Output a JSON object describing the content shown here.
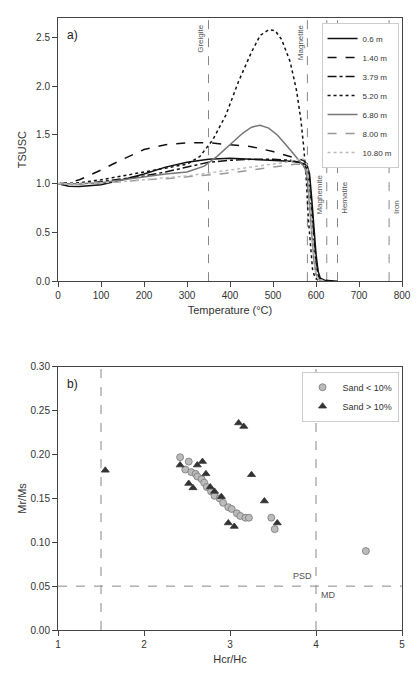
{
  "chart_data": [
    {
      "type": "line",
      "title": "a)",
      "x_label": "Temperature (°C)",
      "y_label": "TSUSC",
      "xlim": [
        0,
        800
      ],
      "ylim": [
        0,
        2.7
      ],
      "xticks": [
        0,
        100,
        200,
        300,
        400,
        500,
        600,
        700,
        800
      ],
      "yticks": [
        {
          "value": 0,
          "label": "0.0"
        },
        0.5,
        {
          "value": 1,
          "label": "1.0"
        },
        1.5,
        {
          "value": 2,
          "label": "2.0"
        },
        2.5
      ],
      "grid": false,
      "legend": "upper right",
      "v_lines": [
        {
          "x": 350,
          "label": "Greigite"
        },
        {
          "x": 580,
          "label": "Magnetite"
        },
        {
          "x": 625,
          "label": "Maghemite"
        },
        {
          "x": 650,
          "label": "Hematite"
        },
        {
          "x": 770,
          "label": "Iron"
        }
      ],
      "series": [
        {
          "name": "0.6 m",
          "color": "#111111",
          "line_style": "solid",
          "x": [
            0,
            25,
            50,
            100,
            150,
            200,
            250,
            300,
            350,
            400,
            450,
            500,
            540,
            560,
            570,
            575,
            580,
            585,
            590,
            595,
            600,
            605,
            610,
            620,
            650
          ],
          "values": [
            1.0,
            0.975,
            0.97,
            0.99,
            1.04,
            1.1,
            1.17,
            1.22,
            1.25,
            1.26,
            1.25,
            1.24,
            1.23,
            1.22,
            1.21,
            1.2,
            1.18,
            1.1,
            0.85,
            0.55,
            0.28,
            0.1,
            0.03,
            0.01,
            0.0
          ]
        },
        {
          "name": "1.40 m",
          "color": "#111111",
          "line_style": "dashed",
          "x": [
            0,
            25,
            50,
            100,
            150,
            200,
            250,
            300,
            350,
            400,
            450,
            500,
            540,
            560,
            570,
            575,
            580,
            585,
            590,
            595,
            600,
            605,
            610,
            620
          ],
          "values": [
            1.0,
            1.01,
            1.04,
            1.14,
            1.25,
            1.35,
            1.4,
            1.42,
            1.42,
            1.4,
            1.38,
            1.33,
            1.28,
            1.26,
            1.24,
            1.22,
            1.2,
            1.05,
            0.8,
            0.5,
            0.22,
            0.08,
            0.02,
            0.0
          ]
        },
        {
          "name": "3.79 m",
          "color": "#111111",
          "line_style": "dashdot",
          "x": [
            0,
            50,
            100,
            150,
            200,
            250,
            300,
            350,
            400,
            450,
            500,
            540,
            560,
            570,
            575,
            580,
            585,
            590,
            595,
            600,
            605,
            610,
            640
          ],
          "values": [
            1.0,
            1.0,
            1.02,
            1.05,
            1.08,
            1.12,
            1.17,
            1.22,
            1.24,
            1.25,
            1.25,
            1.24,
            1.22,
            1.2,
            1.18,
            1.15,
            0.95,
            0.68,
            0.4,
            0.18,
            0.06,
            0.01,
            0.0
          ]
        },
        {
          "name": "5.20 m",
          "color": "#111111",
          "line_style": "dotted",
          "x": [
            0,
            50,
            100,
            150,
            200,
            250,
            300,
            330,
            360,
            390,
            420,
            450,
            470,
            490,
            505,
            520,
            540,
            555,
            565,
            572,
            578,
            582,
            587,
            592,
            598,
            610
          ],
          "values": [
            1.0,
            1.01,
            1.04,
            1.08,
            1.12,
            1.16,
            1.2,
            1.28,
            1.45,
            1.7,
            2.05,
            2.35,
            2.52,
            2.58,
            2.57,
            2.48,
            2.25,
            1.95,
            1.65,
            1.35,
            1.0,
            0.65,
            0.35,
            0.12,
            0.03,
            0.0
          ]
        },
        {
          "name": "6.80 m",
          "color": "#777777",
          "line_style": "solid",
          "x": [
            0,
            50,
            100,
            150,
            200,
            250,
            300,
            340,
            370,
            400,
            430,
            450,
            470,
            490,
            510,
            530,
            550,
            560,
            568,
            575,
            580,
            585,
            590,
            595,
            600,
            605,
            620
          ],
          "values": [
            1.0,
            1.0,
            1.01,
            1.04,
            1.07,
            1.1,
            1.12,
            1.18,
            1.28,
            1.4,
            1.52,
            1.58,
            1.6,
            1.57,
            1.5,
            1.4,
            1.3,
            1.24,
            1.2,
            1.15,
            1.05,
            0.78,
            0.48,
            0.22,
            0.07,
            0.02,
            0.0
          ]
        },
        {
          "name": "8.00 m",
          "color": "#999999",
          "line_style": "dashed",
          "x": [
            0,
            50,
            100,
            150,
            200,
            250,
            300,
            350,
            400,
            450,
            500,
            530,
            550,
            560,
            568,
            575,
            580,
            585,
            590,
            595,
            600,
            605,
            620
          ],
          "values": [
            1.0,
            1.0,
            1.01,
            1.02,
            1.04,
            1.05,
            1.07,
            1.09,
            1.11,
            1.14,
            1.17,
            1.19,
            1.2,
            1.2,
            1.2,
            1.18,
            1.1,
            0.85,
            0.55,
            0.28,
            0.08,
            0.02,
            0.0
          ]
        },
        {
          "name": "10.80 m",
          "color": "#bbbbbb",
          "line_style": "dotted",
          "x": [
            0,
            50,
            100,
            150,
            200,
            250,
            300,
            350,
            400,
            450,
            500,
            530,
            550,
            560,
            568,
            575,
            580,
            585,
            590,
            595,
            600,
            605,
            620
          ],
          "values": [
            1.0,
            1.0,
            1.01,
            1.02,
            1.04,
            1.06,
            1.08,
            1.11,
            1.14,
            1.17,
            1.2,
            1.22,
            1.24,
            1.25,
            1.26,
            1.24,
            1.18,
            0.9,
            0.58,
            0.28,
            0.08,
            0.02,
            0.0
          ]
        }
      ]
    },
    {
      "type": "scatter",
      "title": "b)",
      "x_label": "Hcr/Hc",
      "y_label": "Mr/Ms",
      "xlim": [
        1,
        5
      ],
      "ylim": [
        0,
        0.3
      ],
      "xticks": [
        1,
        2,
        3,
        4,
        5
      ],
      "yticks": [
        {
          "value": 0,
          "label": "0.00"
        },
        0.05,
        {
          "value": 0.1,
          "label": "0.10"
        },
        0.15,
        {
          "value": 0.2,
          "label": "0.20"
        },
        0.25,
        {
          "value": 0.3,
          "label": "0.30"
        }
      ],
      "grid": false,
      "legend": "upper right",
      "v_lines": [
        1.5,
        4.0
      ],
      "h_lines": [
        0.05
      ],
      "annotations": [
        {
          "text": "PSD",
          "x": 3.72,
          "y": 0.055
        },
        {
          "text": "MD",
          "x": 4.05,
          "y": 0.033
        }
      ],
      "series": [
        {
          "name": "Sand < 10%",
          "color": "#bbbbbb",
          "marker": "circle",
          "x": [
            2.42,
            2.52,
            2.48,
            2.55,
            2.6,
            2.62,
            2.67,
            2.7,
            2.73,
            2.78,
            2.82,
            2.88,
            2.92,
            2.98,
            3.02,
            3.08,
            3.12,
            3.18,
            3.22,
            3.48,
            3.52,
            4.58
          ],
          "values": [
            0.197,
            0.192,
            0.183,
            0.18,
            0.178,
            0.175,
            0.172,
            0.168,
            0.163,
            0.158,
            0.153,
            0.15,
            0.145,
            0.14,
            0.138,
            0.133,
            0.13,
            0.128,
            0.128,
            0.128,
            0.115,
            0.09
          ]
        },
        {
          "name": "Sand > 10%",
          "color": "#333333",
          "marker": "triangle",
          "x": [
            1.55,
            2.42,
            2.52,
            2.57,
            2.62,
            2.68,
            2.72,
            2.77,
            2.82,
            2.9,
            2.98,
            3.05,
            3.1,
            3.16,
            3.25,
            3.4,
            3.55
          ],
          "values": [
            0.182,
            0.188,
            0.167,
            0.162,
            0.188,
            0.192,
            0.178,
            0.163,
            0.158,
            0.152,
            0.122,
            0.118,
            0.236,
            0.232,
            0.177,
            0.147,
            0.122
          ]
        }
      ]
    }
  ]
}
